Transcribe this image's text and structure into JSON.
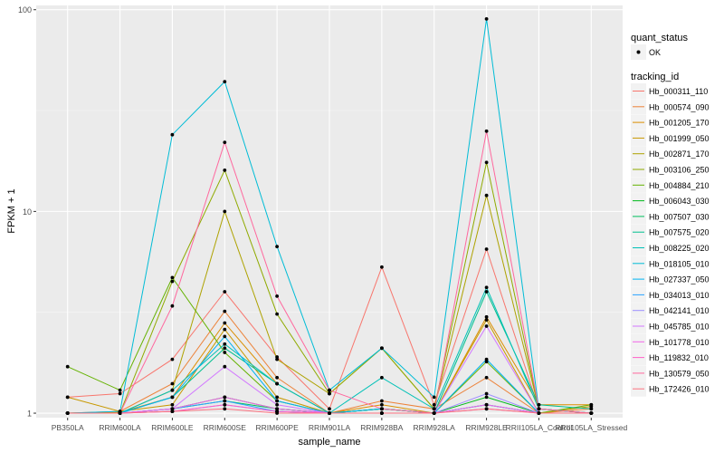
{
  "chart_data": {
    "type": "line",
    "xlabel": "sample_name",
    "ylabel": "FPKM + 1",
    "yscale": "log10",
    "ylim": [
      0.95,
      105
    ],
    "y_ticks": [
      1,
      10,
      100
    ],
    "y_tick_labels": [
      "1",
      "10",
      "100"
    ],
    "categories": [
      "PB350LA",
      "RRIM600LA",
      "RRIM600LE",
      "RRIM600SE",
      "RRIM600PE",
      "RRIM901LA",
      "RRIM928BA",
      "RRIM928LA",
      "RRIM928LE",
      "RRII105LA_Control",
      "RRII105LA_Stressed"
    ],
    "legend_shape": {
      "title": "quant_status",
      "items": [
        "OK"
      ]
    },
    "legend_color_title": "tracking_id",
    "series": [
      {
        "name": "Hb_000311_110",
        "color": "#F8766D",
        "values": [
          1.2,
          1.25,
          1.85,
          4.0,
          1.9,
          1.05,
          5.3,
          1.1,
          6.5,
          1.05,
          1.0
        ]
      },
      {
        "name": "Hb_000574_090",
        "color": "#EC8239",
        "values": [
          1.0,
          1.02,
          1.4,
          3.2,
          1.5,
          1.0,
          1.15,
          1.05,
          1.5,
          1.0,
          1.05
        ]
      },
      {
        "name": "Hb_001205_170",
        "color": "#DB8E00",
        "values": [
          1.0,
          1.01,
          1.2,
          2.8,
          1.4,
          1.0,
          1.1,
          1.0,
          3.0,
          1.1,
          1.1
        ]
      },
      {
        "name": "Hb_001999_050",
        "color": "#C79800",
        "values": [
          1.2,
          1.02,
          1.1,
          2.6,
          1.2,
          1.0,
          1.05,
          1.0,
          2.9,
          1.0,
          1.08
        ]
      },
      {
        "name": "Hb_002871_170",
        "color": "#AEA200",
        "values": [
          1.0,
          1.0,
          1.3,
          10.0,
          1.85,
          1.25,
          2.1,
          1.05,
          12.0,
          1.05,
          1.0
        ]
      },
      {
        "name": "Hb_003106_250",
        "color": "#8FAA00",
        "values": [
          1.0,
          1.0,
          4.5,
          16.0,
          3.1,
          1.25,
          2.1,
          1.05,
          17.5,
          1.05,
          1.0
        ]
      },
      {
        "name": "Hb_004884_210",
        "color": "#64B200",
        "values": [
          1.7,
          1.3,
          4.7,
          2.0,
          1.15,
          1.0,
          1.05,
          1.0,
          1.8,
          1.0,
          1.1
        ]
      },
      {
        "name": "Hb_006043_030",
        "color": "#00B81B",
        "values": [
          1.0,
          1.0,
          1.05,
          1.2,
          1.05,
          1.0,
          1.05,
          1.0,
          1.2,
          1.0,
          1.0
        ]
      },
      {
        "name": "Hb_007507_030",
        "color": "#00BD5C",
        "values": [
          1.0,
          1.0,
          1.05,
          1.15,
          1.05,
          1.0,
          1.0,
          1.0,
          1.1,
          1.0,
          1.0
        ]
      },
      {
        "name": "Hb_007575_020",
        "color": "#00C08E",
        "values": [
          1.0,
          1.0,
          1.2,
          2.1,
          1.4,
          1.0,
          1.05,
          1.0,
          4.0,
          1.1,
          1.05
        ]
      },
      {
        "name": "Hb_008225_020",
        "color": "#00C1B7",
        "values": [
          1.0,
          1.0,
          1.3,
          2.2,
          1.4,
          1.0,
          1.5,
          1.05,
          4.2,
          1.05,
          1.0
        ]
      },
      {
        "name": "Hb_018105_010",
        "color": "#00BCD6",
        "values": [
          1.0,
          1.02,
          24.0,
          44.0,
          6.7,
          1.3,
          2.1,
          1.2,
          90.0,
          1.05,
          1.0
        ]
      },
      {
        "name": "Hb_027337_050",
        "color": "#00B3F2",
        "values": [
          1.0,
          1.0,
          1.2,
          2.4,
          1.15,
          1.0,
          1.05,
          1.0,
          1.85,
          1.0,
          1.0
        ]
      },
      {
        "name": "Hb_034013_010",
        "color": "#29A3FF",
        "values": [
          1.0,
          1.0,
          1.05,
          1.15,
          1.02,
          1.0,
          1.0,
          1.0,
          1.1,
          1.0,
          1.0
        ]
      },
      {
        "name": "Hb_042141_010",
        "color": "#9C8DFF",
        "values": [
          1.0,
          1.0,
          1.02,
          1.1,
          1.02,
          1.0,
          1.0,
          1.0,
          1.25,
          1.0,
          1.0
        ]
      },
      {
        "name": "Hb_045785_010",
        "color": "#D277FF",
        "values": [
          1.0,
          1.0,
          1.05,
          1.7,
          1.1,
          1.0,
          1.0,
          1.0,
          2.7,
          1.0,
          1.0
        ]
      },
      {
        "name": "Hb_101778_010",
        "color": "#F166E8",
        "values": [
          1.0,
          1.0,
          1.05,
          1.2,
          1.05,
          1.0,
          1.0,
          1.0,
          1.1,
          1.0,
          1.0
        ]
      },
      {
        "name": "Hb_119832_010",
        "color": "#FF61C7",
        "values": [
          1.0,
          1.0,
          1.02,
          1.1,
          1.02,
          1.0,
          1.0,
          1.0,
          1.05,
          1.0,
          1.0
        ]
      },
      {
        "name": "Hb_130579_050",
        "color": "#FF689E",
        "values": [
          1.0,
          1.0,
          3.4,
          22.0,
          3.8,
          1.3,
          1.05,
          1.0,
          25.0,
          1.05,
          1.0
        ]
      },
      {
        "name": "Hb_172426_010",
        "color": "#FC717F",
        "values": [
          1.0,
          1.0,
          1.02,
          1.05,
          1.0,
          1.0,
          1.0,
          1.0,
          1.05,
          1.0,
          1.0
        ]
      }
    ]
  }
}
